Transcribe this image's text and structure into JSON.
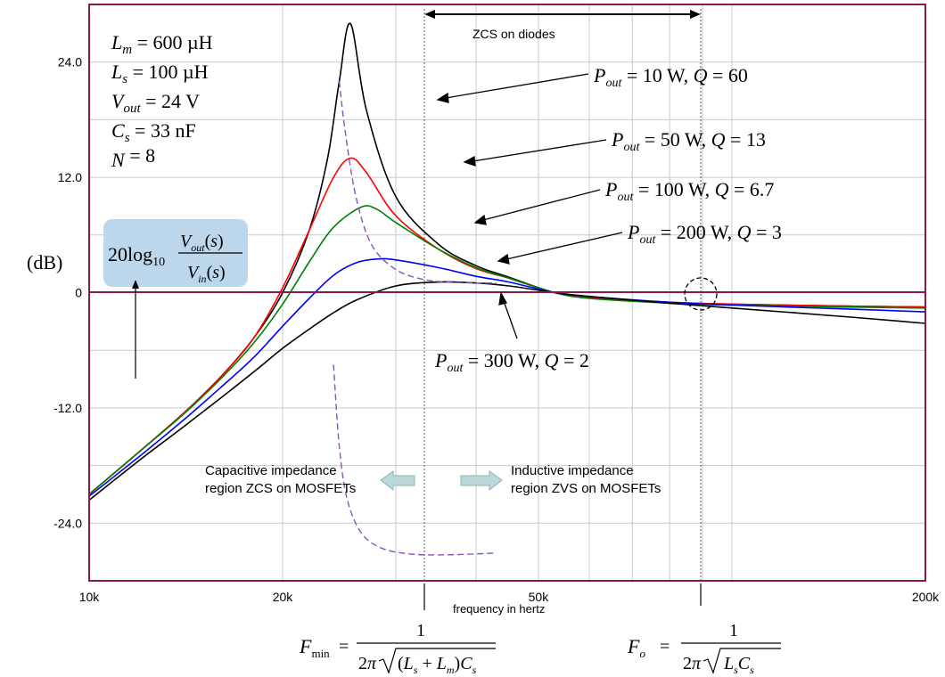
{
  "chart_data": {
    "type": "line",
    "x_scale": "log",
    "xlim": [
      10000,
      200000
    ],
    "ylim": [
      -30,
      30
    ],
    "x_ticks": [
      {
        "value": 10000,
        "label": "10k"
      },
      {
        "value": 20000,
        "label": "20k"
      },
      {
        "value": 50000,
        "label": "50k"
      },
      {
        "value": 200000,
        "label": "200k"
      }
    ],
    "y_ticks": [
      {
        "value": 24,
        "label": "24.0"
      },
      {
        "value": 12,
        "label": "12.0"
      },
      {
        "value": 0,
        "label": "0"
      },
      {
        "value": -12,
        "label": "-12.0"
      },
      {
        "value": -24,
        "label": "-24.0"
      }
    ],
    "xlabel": "frequency in hertz",
    "ylabel": "(dB)",
    "grid": true,
    "colors": {
      "frame": "#8b1a4a",
      "grid": "#c9c9c9",
      "black": "#000000",
      "red": "#ff0000",
      "green": "#008000",
      "blue": "#0000ff",
      "dashed": "#8855bb",
      "highlight": "#bcd7ec"
    },
    "series": [
      {
        "name": "P_out = 10 W, Q = 60",
        "color": "#000000",
        "x": [
          10000,
          12000,
          14000,
          16000,
          18000,
          20000,
          22000,
          23500,
          24500,
          25500,
          27000,
          30000,
          35000,
          40000,
          45000,
          53000,
          60000,
          80000,
          100000,
          150000,
          200000
        ],
        "y": [
          -21,
          -16.5,
          -12.6,
          -8.8,
          -4.8,
          0,
          6.5,
          14,
          22,
          28,
          19,
          10,
          5,
          2.8,
          1.6,
          0,
          -0.5,
          -1,
          -1.2,
          -1.4,
          -1.5
        ]
      },
      {
        "name": "P_out = 50 W, Q = 13",
        "color": "#ff0000",
        "x": [
          10000,
          12000,
          14000,
          16000,
          18000,
          20000,
          22000,
          24000,
          25500,
          27000,
          30000,
          35000,
          40000,
          45000,
          53000,
          60000,
          80000,
          100000,
          150000,
          200000
        ],
        "y": [
          -21,
          -16.5,
          -12.6,
          -8.8,
          -4.8,
          0.5,
          6.5,
          12,
          14,
          12.5,
          8,
          4.5,
          2.5,
          1.5,
          0,
          -0.5,
          -1,
          -1.2,
          -1.4,
          -1.5
        ]
      },
      {
        "name": "P_out = 100 W, Q = 6.7",
        "color": "#008000",
        "x": [
          10000,
          12000,
          14000,
          16000,
          18000,
          20000,
          22000,
          24000,
          26500,
          28000,
          30000,
          35000,
          40000,
          45000,
          53000,
          60000,
          80000,
          100000,
          150000,
          200000
        ],
        "y": [
          -21,
          -16.5,
          -12.7,
          -9,
          -5.3,
          -1.2,
          3.2,
          6.8,
          8.9,
          8.7,
          7.3,
          4.5,
          2.6,
          1.5,
          0,
          -0.6,
          -1.1,
          -1.3,
          -1.5,
          -1.6
        ]
      },
      {
        "name": "P_out = 200 W, Q = 3",
        "color": "#0000ff",
        "x": [
          10000,
          12000,
          14000,
          16000,
          18000,
          20000,
          22000,
          24000,
          26000,
          28000,
          30000,
          35000,
          40000,
          45000,
          53000,
          60000,
          80000,
          100000,
          150000,
          200000
        ],
        "y": [
          -21.2,
          -17,
          -13.3,
          -9.9,
          -6.8,
          -3.5,
          -0.6,
          1.8,
          3.1,
          3.5,
          3.4,
          2.6,
          1.7,
          1.1,
          0,
          -0.4,
          -1,
          -1.3,
          -1.7,
          -2
        ]
      },
      {
        "name": "P_out = 300 W, Q = 2",
        "color": "#000000",
        "x": [
          10000,
          12000,
          14000,
          16000,
          18000,
          20000,
          22000,
          24000,
          26000,
          30000,
          35000,
          40000,
          45000,
          53000,
          60000,
          80000,
          100000,
          150000,
          200000
        ],
        "y": [
          -21.6,
          -17.4,
          -14,
          -11,
          -8.3,
          -5.8,
          -3.8,
          -2.1,
          -0.8,
          0.7,
          1.1,
          1,
          0.7,
          0,
          -0.4,
          -1.1,
          -1.6,
          -2.5,
          -3.2
        ]
      },
      {
        "name": "F_min locus",
        "color": "#8855bb",
        "dashed": true,
        "x": [
          24500,
          25000,
          26000,
          27500,
          30000,
          33000,
          36000,
          40000,
          43000
        ],
        "y": [
          22,
          17,
          10,
          5,
          2.4,
          1.4,
          1.1,
          1,
          1
        ]
      },
      {
        "name": "Fo locus",
        "color": "#8855bb",
        "dashed": true,
        "x": [
          24000,
          24500,
          25200,
          26500,
          28500,
          31500,
          35000,
          40000,
          43000
        ],
        "y": [
          -7.5,
          -16,
          -21.5,
          -25,
          -26.6,
          -27.2,
          -27.3,
          -27.2,
          -27.1
        ]
      }
    ],
    "annotations": {
      "params": [
        {
          "sym": "L",
          "sub": "m",
          "rest": " = 600 µH"
        },
        {
          "sym": "L",
          "sub": "s",
          "rest": " = 100 µH"
        },
        {
          "sym": "V",
          "sub": "out",
          "rest": " = 24 V"
        },
        {
          "sym": "C",
          "sub": "s",
          "rest": " = 33 nF"
        },
        {
          "sym": "N",
          "sub": "",
          "rest": " = 8"
        }
      ],
      "curve_labels": [
        {
          "p": " = 10 W, ",
          "q": " = 60"
        },
        {
          "p": " = 50 W, ",
          "q": " = 13"
        },
        {
          "p": " = 100 W, ",
          "q": " = 6.7"
        },
        {
          "p": " = 200 W, ",
          "q": " = 3"
        },
        {
          "p": " = 300 W, ",
          "q": " = 2"
        }
      ],
      "zcs_diodes": "ZCS on diodes",
      "cap_line1": "Capacitive impedance",
      "cap_line2": "region ZCS on MOSFETs",
      "ind_line1": "Inductive impedance",
      "ind_line2": "region ZVS on MOSFETs",
      "fmin_label": "F",
      "fmin_sub": "min",
      "fo_label": "F",
      "fo_sub": "o"
    }
  }
}
